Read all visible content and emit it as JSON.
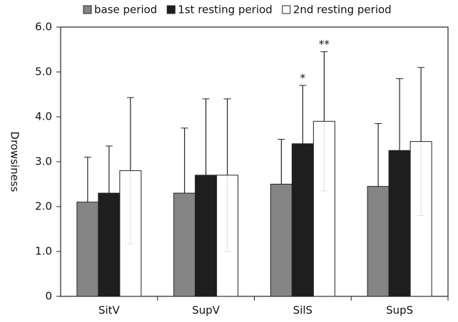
{
  "chart_data": {
    "type": "bar",
    "y_label": "Drowsiness",
    "categories": [
      "SitV",
      "SupV",
      "SilS",
      "SupS"
    ],
    "series": [
      {
        "name": "base period",
        "color": "#858585",
        "values": [
          2.1,
          2.3,
          2.5,
          2.45
        ],
        "errors": [
          1.0,
          1.45,
          1.0,
          1.4
        ]
      },
      {
        "name": "1st resting period",
        "color": "#1e1e1e",
        "values": [
          2.3,
          2.7,
          3.4,
          3.25
        ],
        "errors": [
          1.05,
          1.7,
          1.3,
          1.6
        ]
      },
      {
        "name": "2nd resting period",
        "color": "#ffffff",
        "values": [
          2.8,
          2.7,
          3.9,
          3.45
        ],
        "errors": [
          1.63,
          1.7,
          1.55,
          1.65
        ]
      }
    ],
    "annotations": [
      {
        "text": "*",
        "category": "SilS",
        "series": "1st resting period"
      },
      {
        "text": "**",
        "category": "SilS",
        "series": "2nd resting period"
      }
    ],
    "ylim": [
      0,
      6
    ],
    "yticks": [
      0,
      {
        "value": 1,
        "label": "1.0"
      },
      {
        "value": 2,
        "label": "2.0"
      },
      {
        "value": 3,
        "label": "3.0"
      },
      {
        "value": 4,
        "label": "4.0"
      },
      {
        "value": 5,
        "label": "5.0"
      },
      {
        "value": 6,
        "label": "6.0"
      }
    ]
  }
}
